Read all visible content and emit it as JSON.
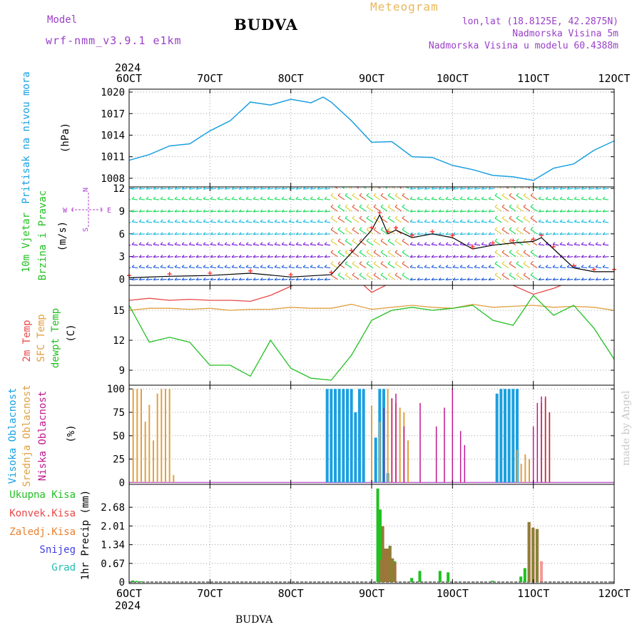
{
  "header": {
    "model_label": "Model",
    "model_version": "wrf-nmm_v3.9.1  e1km",
    "title": "BUDVA",
    "meteogram": "Meteogram",
    "lonlat": "lon,lat (18.8125E, 42.2875N)",
    "altitude": "Nadmorska Visina 5m",
    "model_altitude": "Nadmorska Visina u modelu 60.4388m",
    "credit": "made by Angel",
    "bottom_title": "BUDVA"
  },
  "colors": {
    "pressure": "#1ba0e0",
    "temp2m": "#e84848",
    "sfc_temp": "#e0a040",
    "dewpoint": "#22c022",
    "high_cloud": "#1ba0e0",
    "mid_cloud": "#e0a040",
    "low_cloud": "#c01890",
    "total_precip": "#22c022",
    "conv_precip": "#e84848",
    "frozen_precip": "#e88030",
    "snow": "#4040e0",
    "graupel": "#22c0b0",
    "wind_speed_line": "#000000",
    "gust_marker": "#ff3030",
    "grid": "#a0a0a0"
  },
  "time_axis": {
    "top_year": "2024",
    "bottom_year": "2024",
    "labels": [
      "6OCT",
      "7OCT",
      "8OCT",
      "9OCT",
      "10OCT",
      "11OCT",
      "12OCT"
    ]
  },
  "chart_data": [
    {
      "type": "line",
      "name": "pressure",
      "ylabel_outer": "Pritisak na nivou mora",
      "ylabel_unit": "(hPa)",
      "ylim": [
        1006.8,
        1020.4
      ],
      "yticks": [
        1008,
        1011,
        1014,
        1017,
        1020
      ],
      "grid": true,
      "x": [
        0,
        0.25,
        0.5,
        0.75,
        1.0,
        1.25,
        1.5,
        1.75,
        2.0,
        2.25,
        2.4,
        2.5,
        2.75,
        3.0,
        3.25,
        3.5,
        3.75,
        4.0,
        4.25,
        4.5,
        4.75,
        5.0,
        5.25,
        5.5,
        5.75,
        6.0
      ],
      "values": [
        1010.5,
        1011.3,
        1012.5,
        1012.8,
        1014.6,
        1016.0,
        1018.6,
        1018.2,
        1019.0,
        1018.5,
        1019.3,
        1018.6,
        1016.0,
        1013.0,
        1013.1,
        1011.0,
        1010.9,
        1009.8,
        1009.2,
        1008.4,
        1008.2,
        1007.7,
        1009.4,
        1010.0,
        1011.9,
        1013.2
      ]
    },
    {
      "type": "line",
      "name": "wind",
      "ylabel_outer": [
        "10m Vjetar",
        "Brzina i Pravac"
      ],
      "ylabel_unit": "(m/s)",
      "compass": {
        "n": "N",
        "s": "S",
        "e": "E",
        "w": "W"
      },
      "ylim": [
        -0.8,
        12.2
      ],
      "yticks": [
        0,
        3,
        6,
        9,
        12
      ],
      "grid": true,
      "x": [
        0,
        0.5,
        1.0,
        1.5,
        2.0,
        2.5,
        2.75,
        3.0,
        3.1,
        3.2,
        3.3,
        3.5,
        3.75,
        4.0,
        4.25,
        4.5,
        4.75,
        5.0,
        5.1,
        5.25,
        5.5,
        5.75,
        6.0
      ],
      "values": [
        0.2,
        0.4,
        0.5,
        0.8,
        0.3,
        0.6,
        3.5,
        6.5,
        8.5,
        6.0,
        6.5,
        5.5,
        6.0,
        5.5,
        4.0,
        4.5,
        4.8,
        5.0,
        5.5,
        4.0,
        1.5,
        1.0,
        1.0
      ]
    },
    {
      "type": "line",
      "name": "temperature",
      "ylabel_outer": [
        "2m Temp",
        "SFC Temp",
        "dewpt Temp"
      ],
      "ylabel_unit": "(C)",
      "ylim": [
        7.5,
        17.5
      ],
      "yticks": [
        9,
        12,
        15
      ],
      "grid": true,
      "x": [
        0,
        0.25,
        0.5,
        0.75,
        1.0,
        1.25,
        1.5,
        1.75,
        2.0,
        2.25,
        2.5,
        2.75,
        3.0,
        3.25,
        3.5,
        3.75,
        4.0,
        4.25,
        4.5,
        4.75,
        5.0,
        5.25,
        5.5,
        5.75,
        6.0
      ],
      "series": [
        {
          "name": "2m Temp",
          "values": [
            16.0,
            16.2,
            16.0,
            16.1,
            16.0,
            16.0,
            15.9,
            16.5,
            17.4,
            18.5,
            18.8,
            18.6,
            16.8,
            17.8,
            17.8,
            18.5,
            18.7,
            18.0,
            17.8,
            17.5,
            16.6,
            17.2,
            18.0,
            18.2,
            18.0
          ]
        },
        {
          "name": "SFC Temp",
          "values": [
            15.0,
            15.2,
            15.2,
            15.1,
            15.2,
            15.0,
            15.1,
            15.1,
            15.3,
            15.2,
            15.2,
            15.6,
            15.1,
            15.3,
            15.5,
            15.3,
            15.2,
            15.6,
            15.3,
            15.4,
            15.5,
            15.3,
            15.4,
            15.3,
            15.0
          ]
        },
        {
          "name": "dewpt Temp",
          "values": [
            15.5,
            11.8,
            12.3,
            11.8,
            9.5,
            9.5,
            8.4,
            12.0,
            9.2,
            8.2,
            8.0,
            10.5,
            14.0,
            15.0,
            15.3,
            15.0,
            15.2,
            15.5,
            14.0,
            13.5,
            16.5,
            14.5,
            15.5,
            13.2,
            10.1
          ]
        }
      ]
    },
    {
      "type": "bar",
      "name": "cloud_cover",
      "ylabel_outer": [
        "Visoka Oblacnost",
        "Srednja Oblacnost",
        "Niska Oblacnost"
      ],
      "ylabel_unit": "(%)",
      "ylim": [
        -2,
        104
      ],
      "yticks": [
        0,
        25,
        50,
        75,
        100
      ],
      "grid": true,
      "series": [
        {
          "name": "Visoka Oblacnost",
          "x": [
            2.45,
            2.5,
            2.55,
            2.6,
            2.65,
            2.7,
            2.75,
            2.8,
            2.85,
            2.9,
            3.05,
            3.1,
            3.15,
            3.2,
            4.55,
            4.6,
            4.65,
            4.7,
            4.75,
            4.8
          ],
          "values": [
            100,
            100,
            100,
            100,
            100,
            100,
            100,
            75,
            100,
            100,
            48,
            100,
            100,
            10,
            95,
            100,
            100,
            100,
            100,
            100
          ]
        },
        {
          "name": "Srednja Oblacnost",
          "x": [
            0.05,
            0.1,
            0.15,
            0.2,
            0.25,
            0.3,
            0.35,
            0.4,
            0.45,
            0.5,
            0.55,
            3.0,
            3.1,
            3.2,
            3.25,
            3.3,
            3.35,
            3.4,
            3.45,
            4.8,
            4.85,
            4.9,
            4.95,
            5.1,
            5.15,
            5.2
          ],
          "values": [
            100,
            100,
            100,
            65,
            83,
            45,
            95,
            100,
            100,
            100,
            8,
            82,
            65,
            100,
            90,
            85,
            80,
            75,
            45,
            35,
            20,
            30,
            25,
            85,
            90,
            75
          ]
        },
        {
          "name": "Niska Oblacnost",
          "x": [
            3.15,
            3.25,
            3.3,
            3.4,
            3.6,
            3.8,
            3.9,
            4.0,
            4.1,
            4.15,
            5.0,
            5.05,
            5.1,
            5.15,
            5.2
          ],
          "values": [
            80,
            90,
            95,
            60,
            85,
            60,
            80,
            100,
            55,
            40,
            60,
            85,
            92,
            92,
            75
          ]
        }
      ]
    },
    {
      "type": "bar",
      "name": "precipitation",
      "ylabel_outer": [
        "Ukupna Kisa",
        "Konvek.Kisa",
        "Zaledj.Kisa",
        "Snijeg",
        "Grad"
      ],
      "ylabel_unit": "1hr Precip (mm)",
      "ylim": [
        -0.05,
        3.5
      ],
      "yticks": [
        0,
        0.67,
        1.34,
        2.01,
        2.68
      ],
      "ytick_labels": [
        "0",
        "0.67",
        "1.34",
        "2.01",
        "2.68"
      ],
      "grid": true,
      "series": [
        {
          "name": "Ukupna Kisa",
          "x": [
            0.05,
            0.1,
            0.15,
            3.08,
            3.11,
            3.14,
            3.17,
            3.2,
            3.23,
            3.26,
            3.29,
            3.5,
            3.6,
            3.85,
            3.95,
            4.5,
            4.85,
            4.9,
            4.95,
            5.0,
            5.05
          ],
          "values": [
            0.06,
            0.04,
            0.03,
            3.35,
            2.6,
            2.0,
            1.2,
            1.2,
            1.3,
            0.85,
            0.75,
            0.15,
            0.4,
            0.4,
            0.35,
            0.05,
            0.2,
            0.5,
            2.15,
            1.95,
            1.9
          ]
        },
        {
          "name": "Konvek.Kisa",
          "x": [
            3.11,
            3.14,
            3.17,
            3.2,
            3.23,
            3.26,
            3.29,
            4.95,
            5.0,
            5.05,
            5.1
          ],
          "values": [
            0.8,
            2.0,
            1.2,
            1.2,
            1.3,
            0.85,
            0.7,
            2.15,
            1.95,
            1.9,
            0.75
          ]
        }
      ]
    }
  ]
}
